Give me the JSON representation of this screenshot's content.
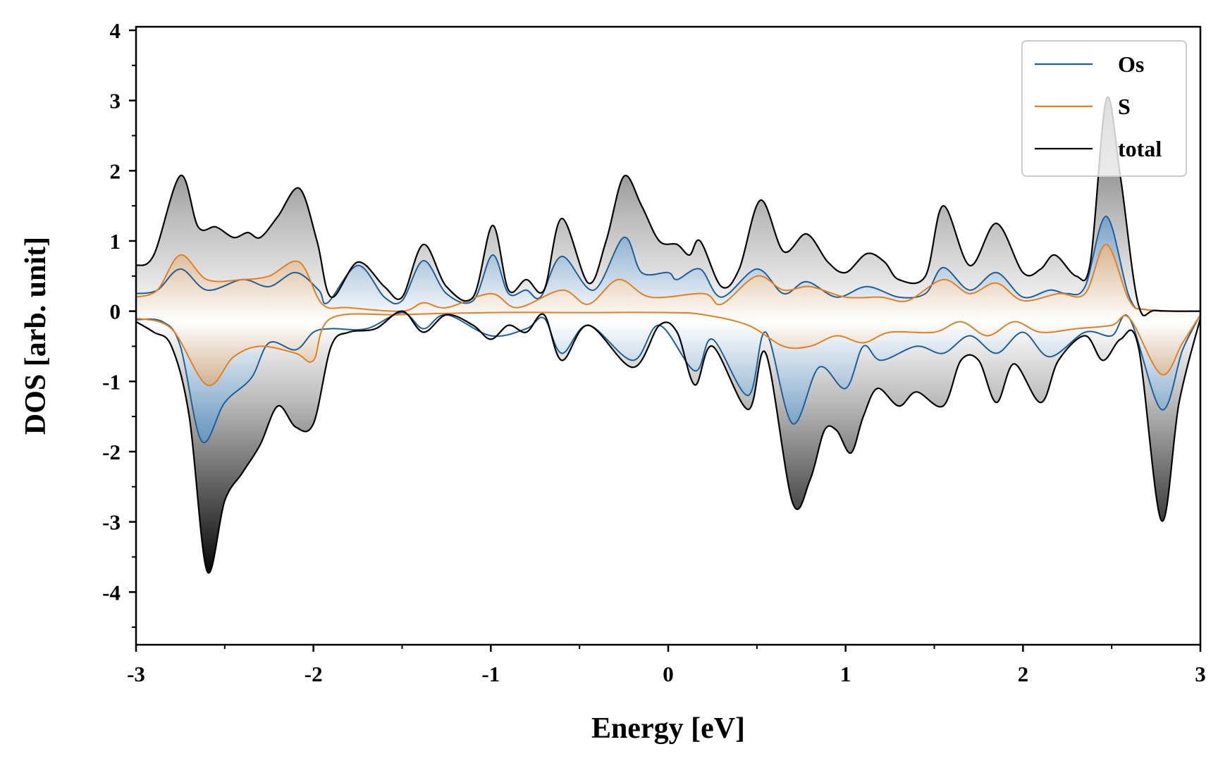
{
  "chart_data": {
    "type": "area",
    "title": "",
    "xlabel": "Energy [eV]",
    "ylabel": "DOS [arb. unit]",
    "xlim": [
      -3,
      3
    ],
    "ylim": [
      -4.75,
      4.05
    ],
    "xticks": [
      -3,
      -2,
      -1,
      0,
      1,
      2,
      3
    ],
    "xtick_labels": [
      "-3",
      "-2",
      "-1",
      "0",
      "1",
      "2",
      "3"
    ],
    "yticks": [
      4,
      3,
      2,
      1,
      0,
      -1,
      -2,
      -3,
      -4
    ],
    "ytick_labels": [
      "4",
      "3",
      "2",
      "1",
      "0",
      "-1",
      "-2",
      "-3",
      "-4"
    ],
    "legend_position": "top-right",
    "colors": {
      "Os": "#1f5f98",
      "S": "#e5801f",
      "total": "#000000"
    },
    "series": [
      {
        "name": "Os",
        "spin_up": [
          [
            -3,
            0.25
          ],
          [
            -2.88,
            0.3
          ],
          [
            -2.75,
            0.6
          ],
          [
            -2.6,
            0.3
          ],
          [
            -2.4,
            0.45
          ],
          [
            -2.25,
            0.35
          ],
          [
            -2.1,
            0.55
          ],
          [
            -1.97,
            0.3
          ],
          [
            -1.92,
            0.12
          ],
          [
            -1.75,
            0.65
          ],
          [
            -1.6,
            0.2
          ],
          [
            -1.5,
            0.15
          ],
          [
            -1.38,
            0.72
          ],
          [
            -1.25,
            0.25
          ],
          [
            -1.1,
            0.15
          ],
          [
            -0.99,
            0.8
          ],
          [
            -0.9,
            0.25
          ],
          [
            -0.8,
            0.3
          ],
          [
            -0.72,
            0.2
          ],
          [
            -0.6,
            0.78
          ],
          [
            -0.42,
            0.3
          ],
          [
            -0.25,
            1.05
          ],
          [
            -0.15,
            0.55
          ],
          [
            0,
            0.55
          ],
          [
            0.05,
            0.45
          ],
          [
            0.18,
            0.6
          ],
          [
            0.3,
            0.2
          ],
          [
            0.5,
            0.6
          ],
          [
            0.65,
            0.25
          ],
          [
            0.78,
            0.42
          ],
          [
            0.95,
            0.2
          ],
          [
            1.12,
            0.35
          ],
          [
            1.3,
            0.2
          ],
          [
            1.45,
            0.25
          ],
          [
            1.55,
            0.62
          ],
          [
            1.7,
            0.3
          ],
          [
            1.85,
            0.55
          ],
          [
            2,
            0.2
          ],
          [
            2.15,
            0.3
          ],
          [
            2.25,
            0.25
          ],
          [
            2.35,
            0.35
          ],
          [
            2.47,
            1.35
          ],
          [
            2.6,
            0.2
          ],
          [
            2.7,
            0.02
          ],
          [
            3,
            0
          ]
        ],
        "spin_down": [
          [
            -3,
            -0.12
          ],
          [
            -2.85,
            -0.15
          ],
          [
            -2.75,
            -0.5
          ],
          [
            -2.63,
            -1.85
          ],
          [
            -2.5,
            -1.3
          ],
          [
            -2.35,
            -0.95
          ],
          [
            -2.25,
            -0.45
          ],
          [
            -2.1,
            -0.55
          ],
          [
            -2.0,
            -0.3
          ],
          [
            -1.9,
            -0.25
          ],
          [
            -1.7,
            -0.25
          ],
          [
            -1.5,
            -0.02
          ],
          [
            -1.38,
            -0.25
          ],
          [
            -1.25,
            -0.05
          ],
          [
            -1.0,
            -0.35
          ],
          [
            -0.8,
            -0.25
          ],
          [
            -0.7,
            -0.1
          ],
          [
            -0.6,
            -0.6
          ],
          [
            -0.45,
            -0.2
          ],
          [
            -0.2,
            -0.7
          ],
          [
            -0.05,
            -0.2
          ],
          [
            0.15,
            -0.85
          ],
          [
            0.25,
            -0.4
          ],
          [
            0.45,
            -1.2
          ],
          [
            0.55,
            -0.3
          ],
          [
            0.7,
            -1.6
          ],
          [
            0.85,
            -0.8
          ],
          [
            1.0,
            -1.1
          ],
          [
            1.1,
            -0.5
          ],
          [
            1.2,
            -0.7
          ],
          [
            1.4,
            -0.5
          ],
          [
            1.55,
            -0.6
          ],
          [
            1.7,
            -0.35
          ],
          [
            1.85,
            -0.6
          ],
          [
            2.0,
            -0.3
          ],
          [
            2.15,
            -0.65
          ],
          [
            2.35,
            -0.3
          ],
          [
            2.5,
            -0.35
          ],
          [
            2.6,
            -0.1
          ],
          [
            2.78,
            -1.4
          ],
          [
            2.9,
            -0.55
          ],
          [
            3,
            -0.05
          ]
        ]
      },
      {
        "name": "S",
        "spin_up": [
          [
            -3,
            0.2
          ],
          [
            -2.88,
            0.3
          ],
          [
            -2.75,
            0.8
          ],
          [
            -2.6,
            0.45
          ],
          [
            -2.4,
            0.45
          ],
          [
            -2.25,
            0.5
          ],
          [
            -2.08,
            0.7
          ],
          [
            -1.95,
            0.1
          ],
          [
            -1.8,
            0.05
          ],
          [
            -1.5,
            0
          ],
          [
            -1.38,
            0.12
          ],
          [
            -1.25,
            0.05
          ],
          [
            -1.0,
            0.25
          ],
          [
            -0.85,
            0.05
          ],
          [
            -0.6,
            0.3
          ],
          [
            -0.45,
            0.1
          ],
          [
            -0.28,
            0.45
          ],
          [
            -0.1,
            0.2
          ],
          [
            0.2,
            0.25
          ],
          [
            0.3,
            0.1
          ],
          [
            0.5,
            0.5
          ],
          [
            0.65,
            0.3
          ],
          [
            0.8,
            0.35
          ],
          [
            1.0,
            0.2
          ],
          [
            1.2,
            0.2
          ],
          [
            1.35,
            0.15
          ],
          [
            1.55,
            0.45
          ],
          [
            1.7,
            0.25
          ],
          [
            1.85,
            0.4
          ],
          [
            2.0,
            0.15
          ],
          [
            2.2,
            0.25
          ],
          [
            2.35,
            0.25
          ],
          [
            2.47,
            0.95
          ],
          [
            2.6,
            0.15
          ],
          [
            2.7,
            0.02
          ],
          [
            3,
            0
          ]
        ],
        "spin_down": [
          [
            -3,
            -0.1
          ],
          [
            -2.8,
            -0.25
          ],
          [
            -2.6,
            -1.05
          ],
          [
            -2.45,
            -0.65
          ],
          [
            -2.3,
            -0.5
          ],
          [
            -2.1,
            -0.6
          ],
          [
            -2.0,
            -0.7
          ],
          [
            -1.9,
            -0.1
          ],
          [
            -1.5,
            -0.05
          ],
          [
            -1.0,
            -0.02
          ],
          [
            -0.5,
            -0.02
          ],
          [
            0,
            -0.02
          ],
          [
            0.2,
            -0.05
          ],
          [
            0.45,
            -0.2
          ],
          [
            0.65,
            -0.5
          ],
          [
            0.8,
            -0.5
          ],
          [
            0.95,
            -0.35
          ],
          [
            1.1,
            -0.45
          ],
          [
            1.25,
            -0.3
          ],
          [
            1.5,
            -0.3
          ],
          [
            1.65,
            -0.15
          ],
          [
            1.8,
            -0.35
          ],
          [
            1.95,
            -0.15
          ],
          [
            2.1,
            -0.3
          ],
          [
            2.3,
            -0.25
          ],
          [
            2.5,
            -0.2
          ],
          [
            2.6,
            -0.1
          ],
          [
            2.78,
            -0.9
          ],
          [
            2.9,
            -0.45
          ],
          [
            3,
            -0.05
          ]
        ]
      },
      {
        "name": "total",
        "spin_up": [
          [
            -3,
            0.65
          ],
          [
            -2.9,
            0.8
          ],
          [
            -2.75,
            1.93
          ],
          [
            -2.65,
            1.2
          ],
          [
            -2.55,
            1.2
          ],
          [
            -2.45,
            1.05
          ],
          [
            -2.37,
            1.12
          ],
          [
            -2.3,
            1.05
          ],
          [
            -2.2,
            1.35
          ],
          [
            -2.08,
            1.75
          ],
          [
            -1.98,
            1.0
          ],
          [
            -1.9,
            0.2
          ],
          [
            -1.75,
            0.7
          ],
          [
            -1.6,
            0.35
          ],
          [
            -1.5,
            0.2
          ],
          [
            -1.38,
            0.95
          ],
          [
            -1.25,
            0.35
          ],
          [
            -1.1,
            0.2
          ],
          [
            -0.99,
            1.22
          ],
          [
            -0.9,
            0.3
          ],
          [
            -0.8,
            0.45
          ],
          [
            -0.7,
            0.3
          ],
          [
            -0.6,
            1.32
          ],
          [
            -0.45,
            0.4
          ],
          [
            -0.35,
            1.0
          ],
          [
            -0.25,
            1.92
          ],
          [
            -0.15,
            1.5
          ],
          [
            -0.05,
            1.0
          ],
          [
            0.05,
            0.95
          ],
          [
            0.12,
            0.8
          ],
          [
            0.18,
            1.0
          ],
          [
            0.3,
            0.35
          ],
          [
            0.4,
            0.6
          ],
          [
            0.52,
            1.58
          ],
          [
            0.65,
            0.85
          ],
          [
            0.78,
            1.1
          ],
          [
            0.9,
            0.7
          ],
          [
            1.0,
            0.55
          ],
          [
            1.12,
            0.82
          ],
          [
            1.22,
            0.7
          ],
          [
            1.3,
            0.45
          ],
          [
            1.45,
            0.5
          ],
          [
            1.55,
            1.5
          ],
          [
            1.7,
            0.65
          ],
          [
            1.85,
            1.25
          ],
          [
            2.0,
            0.55
          ],
          [
            2.1,
            0.6
          ],
          [
            2.18,
            0.8
          ],
          [
            2.3,
            0.5
          ],
          [
            2.38,
            0.7
          ],
          [
            2.47,
            3.02
          ],
          [
            2.55,
            1.9
          ],
          [
            2.65,
            0.1
          ],
          [
            2.75,
            0.01
          ],
          [
            3,
            0
          ]
        ],
        "spin_down": [
          [
            -3,
            -0.15
          ],
          [
            -2.9,
            -0.3
          ],
          [
            -2.8,
            -0.5
          ],
          [
            -2.7,
            -1.5
          ],
          [
            -2.6,
            -3.7
          ],
          [
            -2.5,
            -2.7
          ],
          [
            -2.4,
            -2.3
          ],
          [
            -2.3,
            -1.9
          ],
          [
            -2.2,
            -1.35
          ],
          [
            -2.1,
            -1.65
          ],
          [
            -2.0,
            -1.6
          ],
          [
            -1.9,
            -0.5
          ],
          [
            -1.8,
            -0.3
          ],
          [
            -1.65,
            -0.25
          ],
          [
            -1.5,
            0
          ],
          [
            -1.38,
            -0.3
          ],
          [
            -1.25,
            -0.05
          ],
          [
            -1.1,
            -0.2
          ],
          [
            -1.0,
            -0.4
          ],
          [
            -0.9,
            -0.2
          ],
          [
            -0.8,
            -0.3
          ],
          [
            -0.7,
            -0.05
          ],
          [
            -0.6,
            -0.7
          ],
          [
            -0.45,
            -0.2
          ],
          [
            -0.2,
            -0.8
          ],
          [
            -0.05,
            -0.2
          ],
          [
            0.05,
            -0.3
          ],
          [
            0.15,
            -1.05
          ],
          [
            0.25,
            -0.5
          ],
          [
            0.45,
            -1.4
          ],
          [
            0.55,
            -0.6
          ],
          [
            0.7,
            -2.72
          ],
          [
            0.8,
            -2.4
          ],
          [
            0.88,
            -1.7
          ],
          [
            0.95,
            -1.7
          ],
          [
            1.03,
            -2.02
          ],
          [
            1.1,
            -1.5
          ],
          [
            1.18,
            -1.1
          ],
          [
            1.3,
            -1.35
          ],
          [
            1.4,
            -1.15
          ],
          [
            1.55,
            -1.35
          ],
          [
            1.65,
            -0.7
          ],
          [
            1.75,
            -0.7
          ],
          [
            1.85,
            -1.3
          ],
          [
            1.95,
            -0.75
          ],
          [
            2.1,
            -1.3
          ],
          [
            2.2,
            -0.7
          ],
          [
            2.35,
            -0.35
          ],
          [
            2.45,
            -0.7
          ],
          [
            2.55,
            -0.4
          ],
          [
            2.65,
            -0.5
          ],
          [
            2.78,
            -2.98
          ],
          [
            2.88,
            -1.3
          ],
          [
            3,
            -0.1
          ]
        ]
      }
    ]
  }
}
